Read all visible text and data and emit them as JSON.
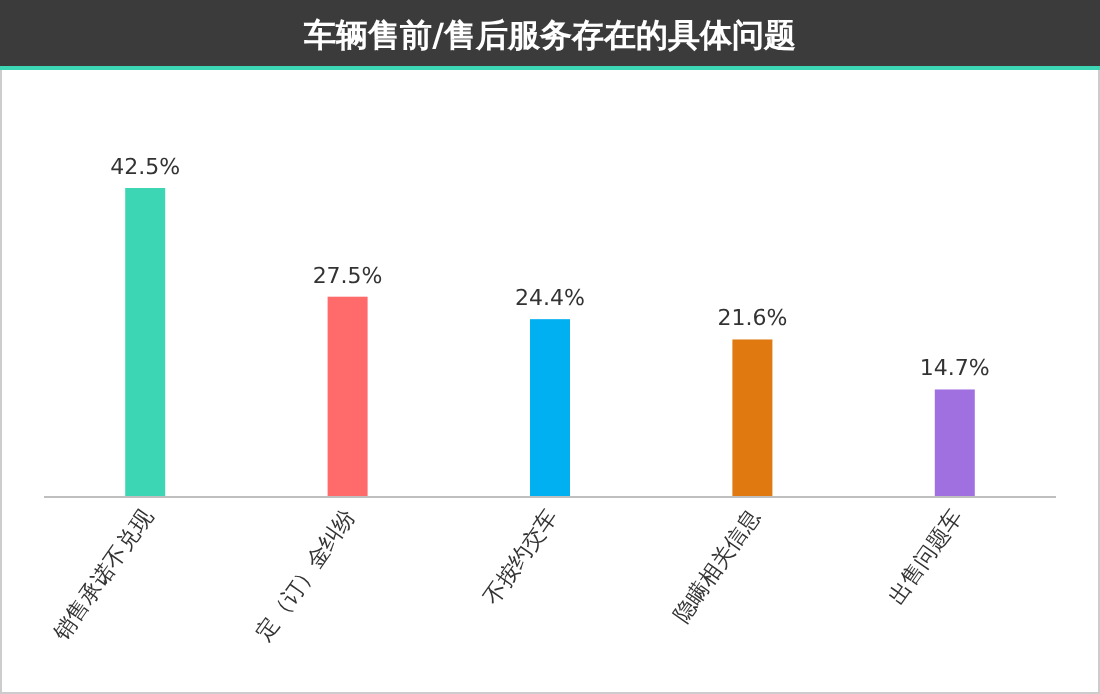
{
  "chart_data": {
    "type": "bar",
    "title": "车辆售前/售后服务存在的具体问题",
    "categories": [
      "销售承诺不兑现",
      "定（订）金纠纷",
      "不按约交车",
      "隐瞒相关信息",
      "出售问题车"
    ],
    "values": [
      42.5,
      27.5,
      24.4,
      21.6,
      14.7
    ],
    "colors": [
      "#3dd6b5",
      "#ff6b6b",
      "#00b0f0",
      "#e07a10",
      "#a070e0"
    ],
    "value_labels": [
      "42.5%",
      "27.5%",
      "24.4%",
      "21.6%",
      "14.7%"
    ]
  }
}
